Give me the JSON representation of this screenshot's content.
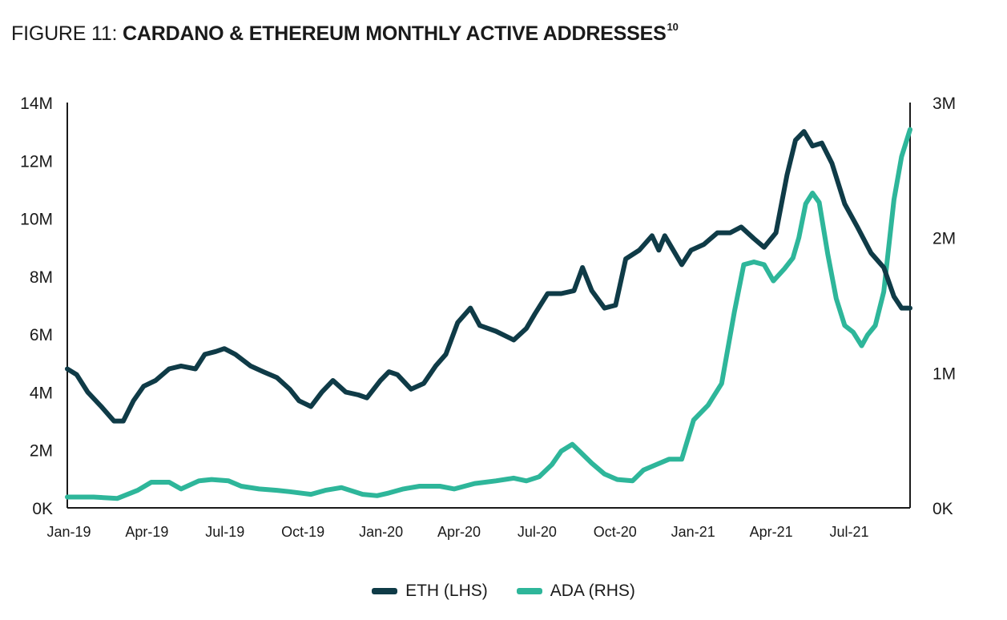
{
  "title": {
    "prefix": "FIGURE 11:",
    "main": "CARDANO & ETHEREUM MONTHLY ACTIVE ADDRESSES",
    "footnote": "10"
  },
  "colors": {
    "eth": "#0f3b47",
    "ada": "#2eb69a",
    "axis": "#1a1a1a"
  },
  "chart_data": {
    "type": "line",
    "title": "CARDANO & ETHEREUM MONTHLY ACTIVE ADDRESSES",
    "x_ticks": [
      "Jan-19",
      "Apr-19",
      "Jul-19",
      "Oct-19",
      "Jan-20",
      "Apr-20",
      "Jul-20",
      "Oct-20",
      "Jan-21",
      "Apr-21",
      "Jul-21"
    ],
    "y_left": {
      "ticks": [
        "0K",
        "2M",
        "4M",
        "6M",
        "8M",
        "10M",
        "12M",
        "14M"
      ],
      "range": [
        0,
        14000000
      ]
    },
    "y_right": {
      "ticks": [
        "0K",
        "1M",
        "2M",
        "3M"
      ],
      "range": [
        0,
        3000000
      ]
    },
    "x_range": [
      "2019-01-01",
      "2021-09-20"
    ],
    "grid": false,
    "legend_position": "bottom-center",
    "series": [
      {
        "name": "ETH (LHS)",
        "axis": "left",
        "x": [
          "2019-01-01",
          "2019-01-12",
          "2019-01-25",
          "2019-02-10",
          "2019-02-25",
          "2019-03-08",
          "2019-03-20",
          "2019-04-01",
          "2019-04-15",
          "2019-05-01",
          "2019-05-15",
          "2019-06-01",
          "2019-06-12",
          "2019-06-25",
          "2019-07-05",
          "2019-07-18",
          "2019-08-05",
          "2019-08-20",
          "2019-09-05",
          "2019-09-20",
          "2019-10-01",
          "2019-10-15",
          "2019-10-28",
          "2019-11-10",
          "2019-11-25",
          "2019-12-10",
          "2019-12-20",
          "2020-01-05",
          "2020-01-15",
          "2020-01-25",
          "2020-02-10",
          "2020-02-25",
          "2020-03-10",
          "2020-03-22",
          "2020-04-05",
          "2020-04-20",
          "2020-05-01",
          "2020-05-20",
          "2020-06-10",
          "2020-06-25",
          "2020-07-05",
          "2020-07-20",
          "2020-08-05",
          "2020-08-20",
          "2020-08-30",
          "2020-09-10",
          "2020-09-25",
          "2020-10-08",
          "2020-10-20",
          "2020-11-05",
          "2020-11-20",
          "2020-11-28",
          "2020-12-05",
          "2020-12-15",
          "2020-12-25",
          "2021-01-05",
          "2021-01-20",
          "2021-02-05",
          "2021-02-20",
          "2021-03-05",
          "2021-03-20",
          "2021-04-01",
          "2021-04-15",
          "2021-04-28",
          "2021-05-08",
          "2021-05-18",
          "2021-05-28",
          "2021-06-08",
          "2021-06-20",
          "2021-07-05",
          "2021-07-20",
          "2021-08-05",
          "2021-08-20",
          "2021-09-01",
          "2021-09-10",
          "2021-09-20"
        ],
        "values": [
          4800000,
          4600000,
          4000000,
          3500000,
          3000000,
          3000000,
          3700000,
          4200000,
          4400000,
          4800000,
          4900000,
          4800000,
          5300000,
          5400000,
          5500000,
          5300000,
          4900000,
          4700000,
          4500000,
          4100000,
          3700000,
          3500000,
          4000000,
          4400000,
          4000000,
          3900000,
          3800000,
          4400000,
          4700000,
          4600000,
          4100000,
          4300000,
          4900000,
          5300000,
          6400000,
          6900000,
          6300000,
          6100000,
          5800000,
          6200000,
          6700000,
          7400000,
          7400000,
          7500000,
          8300000,
          7500000,
          6900000,
          7000000,
          8600000,
          8900000,
          9400000,
          8900000,
          9400000,
          8900000,
          8400000,
          8900000,
          9100000,
          9500000,
          9500000,
          9700000,
          9300000,
          9000000,
          9500000,
          11500000,
          12700000,
          13000000,
          12500000,
          12600000,
          11900000,
          10500000,
          9700000,
          8800000,
          8300000,
          7300000,
          6900000,
          6900000
        ]
      },
      {
        "name": "ADA (RHS)",
        "axis": "right",
        "x": [
          "2019-01-01",
          "2019-02-01",
          "2019-03-01",
          "2019-03-25",
          "2019-04-10",
          "2019-05-01",
          "2019-05-15",
          "2019-06-05",
          "2019-06-20",
          "2019-07-10",
          "2019-07-25",
          "2019-08-15",
          "2019-09-05",
          "2019-09-20",
          "2019-10-15",
          "2019-11-01",
          "2019-11-20",
          "2019-12-15",
          "2020-01-01",
          "2020-01-15",
          "2020-02-01",
          "2020-02-20",
          "2020-03-15",
          "2020-04-01",
          "2020-04-25",
          "2020-05-20",
          "2020-06-10",
          "2020-06-25",
          "2020-07-10",
          "2020-07-25",
          "2020-08-05",
          "2020-08-18",
          "2020-08-28",
          "2020-09-10",
          "2020-09-25",
          "2020-10-10",
          "2020-10-28",
          "2020-11-10",
          "2020-11-25",
          "2020-12-10",
          "2020-12-25",
          "2021-01-08",
          "2021-01-25",
          "2021-02-10",
          "2021-02-25",
          "2021-03-08",
          "2021-03-20",
          "2021-04-01",
          "2021-04-12",
          "2021-04-25",
          "2021-05-05",
          "2021-05-12",
          "2021-05-20",
          "2021-05-28",
          "2021-06-05",
          "2021-06-15",
          "2021-06-25",
          "2021-07-05",
          "2021-07-15",
          "2021-07-25",
          "2021-08-01",
          "2021-08-10",
          "2021-08-20",
          "2021-09-01",
          "2021-09-10",
          "2021-09-20"
        ],
        "values": [
          80000,
          80000,
          70000,
          130000,
          190000,
          190000,
          140000,
          200000,
          210000,
          200000,
          160000,
          140000,
          130000,
          120000,
          100000,
          130000,
          150000,
          100000,
          90000,
          110000,
          140000,
          160000,
          160000,
          140000,
          180000,
          200000,
          220000,
          200000,
          230000,
          320000,
          420000,
          470000,
          410000,
          330000,
          250000,
          210000,
          200000,
          280000,
          320000,
          360000,
          360000,
          650000,
          760000,
          920000,
          1450000,
          1800000,
          1820000,
          1800000,
          1680000,
          1770000,
          1850000,
          2000000,
          2250000,
          2330000,
          2260000,
          1880000,
          1550000,
          1350000,
          1300000,
          1200000,
          1280000,
          1350000,
          1600000,
          2280000,
          2600000,
          2800000
        ]
      }
    ]
  },
  "legend": [
    {
      "label": "ETH (LHS)",
      "color": "#0f3b47"
    },
    {
      "label": "ADA (RHS)",
      "color": "#2eb69a"
    }
  ]
}
